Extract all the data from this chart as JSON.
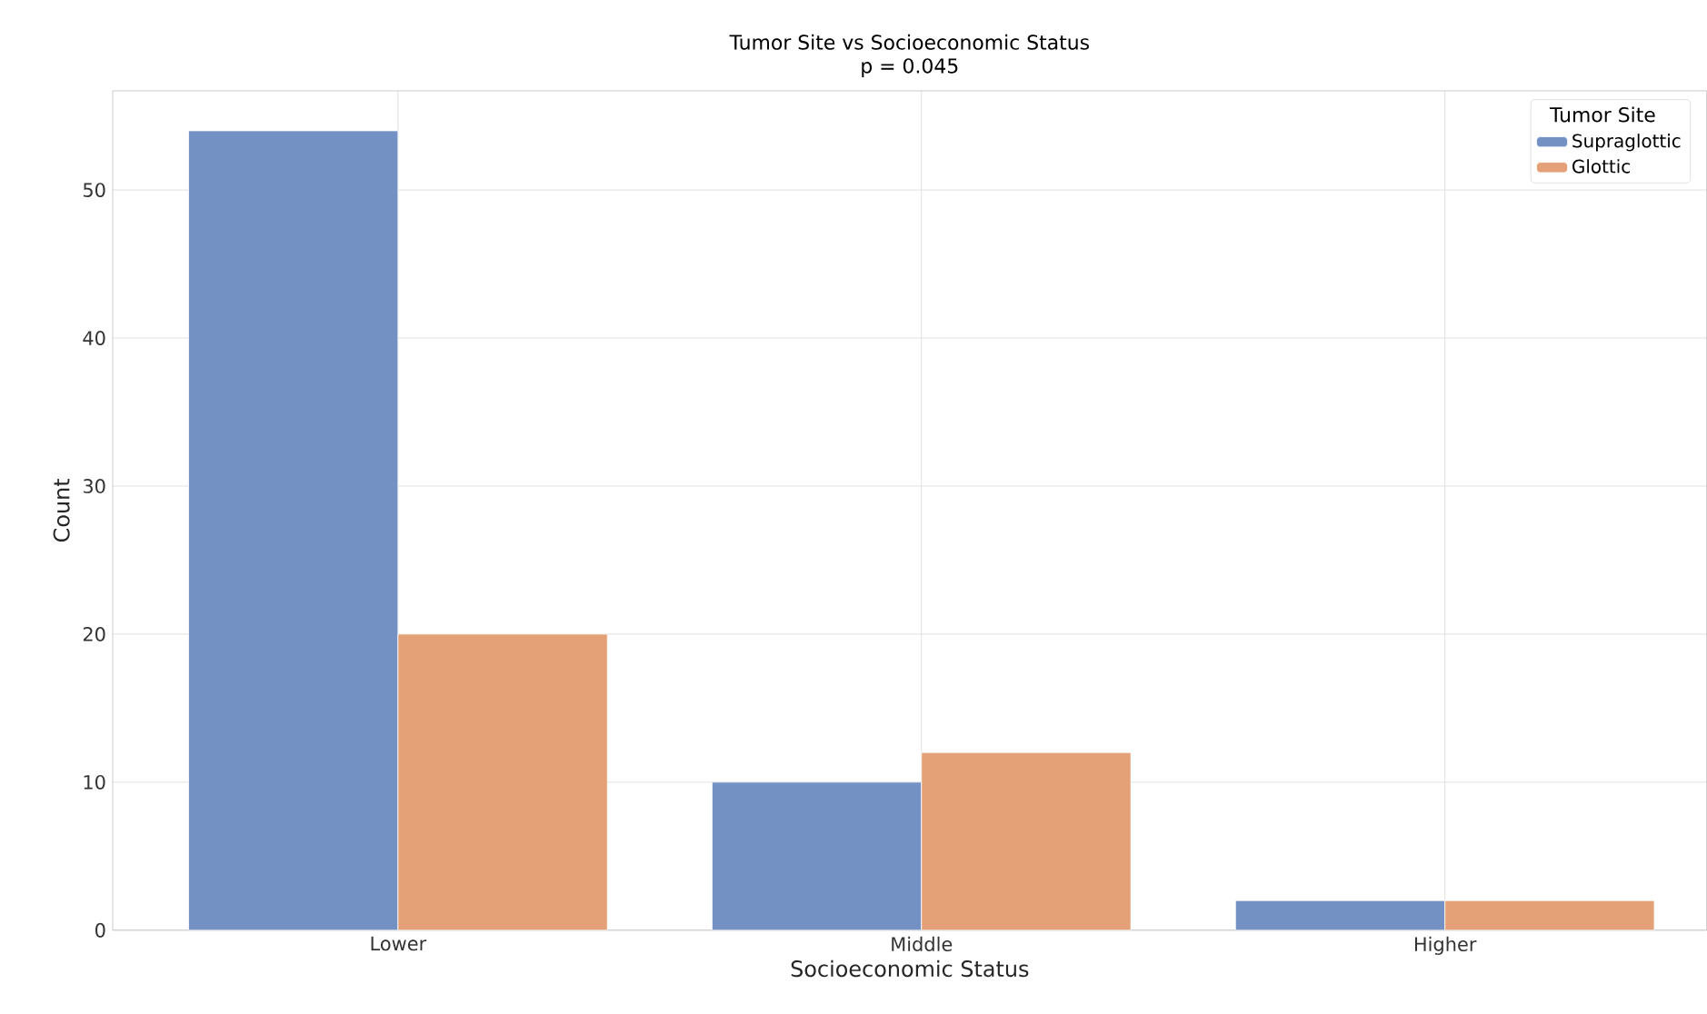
{
  "chart_data": {
    "type": "bar",
    "title": "Tumor Site vs Socioeconomic Status",
    "subtitle": "p = 0.045",
    "xlabel": "Socioeconomic Status",
    "ylabel": "Count",
    "legend_title": "Tumor Site",
    "categories": [
      "Lower",
      "Middle",
      "Higher"
    ],
    "series": [
      {
        "name": "Supraglottic",
        "color": "#7391c3",
        "values": [
          54,
          10,
          2
        ]
      },
      {
        "name": "Glottic",
        "color": "#e4a077",
        "values": [
          20,
          12,
          2
        ]
      }
    ],
    "ylim": [
      0,
      56.7
    ],
    "yticks": [
      0,
      10,
      20,
      30,
      40,
      50
    ],
    "grid": true,
    "legend": "top right"
  }
}
